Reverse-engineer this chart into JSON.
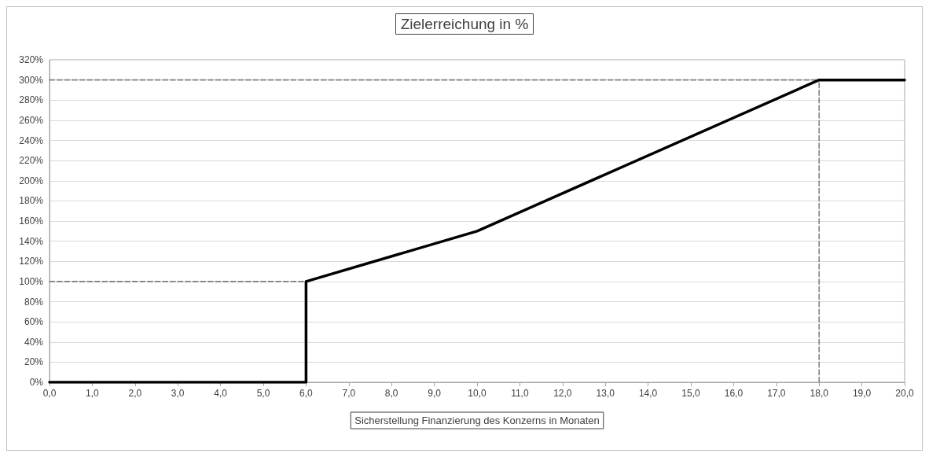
{
  "chart_data": {
    "type": "line",
    "title": "Zielerreichung in %",
    "xlabel": "Sicherstellung Finanzierung des Konzerns in Monaten",
    "series": [
      {
        "color": "#000000",
        "x": [
          0,
          6,
          6,
          10,
          18,
          20
        ],
        "values": [
          0,
          0,
          100,
          150,
          300,
          300
        ]
      },
      {
        "color": "#808080",
        "line_style": "dashed",
        "x": [
          0,
          6
        ],
        "values": [
          100,
          100
        ]
      },
      {
        "color": "#808080",
        "line_style": "dashed",
        "x": [
          0,
          18
        ],
        "values": [
          300,
          300
        ]
      },
      {
        "color": "#808080",
        "line_style": "dashed",
        "x": [
          18,
          18
        ],
        "values": [
          0,
          300
        ]
      }
    ],
    "xlim": [
      0,
      20
    ],
    "xticks": [
      {
        "value": 0,
        "label": "0,0"
      },
      {
        "value": 1,
        "label": "1,0"
      },
      {
        "value": 2,
        "label": "2,0"
      },
      {
        "value": 3,
        "label": "3,0"
      },
      {
        "value": 4,
        "label": "4,0"
      },
      {
        "value": 5,
        "label": "5,0"
      },
      {
        "value": 6,
        "label": "6,0"
      },
      {
        "value": 7,
        "label": "7,0"
      },
      {
        "value": 8,
        "label": "8,0"
      },
      {
        "value": 9,
        "label": "9,0"
      },
      {
        "value": 10,
        "label": "10,0"
      },
      {
        "value": 11,
        "label": "11,0"
      },
      {
        "value": 12,
        "label": "12,0"
      },
      {
        "value": 13,
        "label": "13,0"
      },
      {
        "value": 14,
        "label": "14,0"
      },
      {
        "value": 15,
        "label": "15,0"
      },
      {
        "value": 16,
        "label": "16,0"
      },
      {
        "value": 17,
        "label": "17,0"
      },
      {
        "value": 18,
        "label": "18,0"
      },
      {
        "value": 19,
        "label": "19,0"
      },
      {
        "value": 20,
        "label": "20,0"
      }
    ],
    "ylim": [
      0,
      320
    ],
    "yticks": [
      {
        "value": 0,
        "label": "0%"
      },
      {
        "value": 20,
        "label": "20%"
      },
      {
        "value": 40,
        "label": "40%"
      },
      {
        "value": 60,
        "label": "60%"
      },
      {
        "value": 80,
        "label": "80%"
      },
      {
        "value": 100,
        "label": "100%"
      },
      {
        "value": 120,
        "label": "120%"
      },
      {
        "value": 140,
        "label": "140%"
      },
      {
        "value": 160,
        "label": "160%"
      },
      {
        "value": 180,
        "label": "180%"
      },
      {
        "value": 200,
        "label": "200%"
      },
      {
        "value": 220,
        "label": "220%"
      },
      {
        "value": 240,
        "label": "240%"
      },
      {
        "value": 260,
        "label": "260%"
      },
      {
        "value": 280,
        "label": "280%"
      },
      {
        "value": 300,
        "label": "300%"
      },
      {
        "value": 320,
        "label": "320%"
      }
    ],
    "grid": "y",
    "marker": "none"
  }
}
